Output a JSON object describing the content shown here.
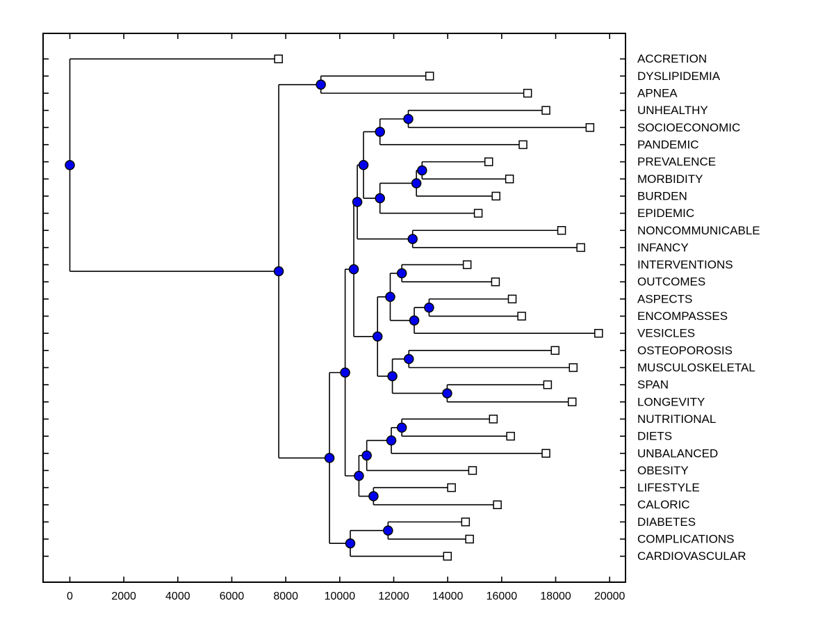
{
  "figure": {
    "background": "#ffffff"
  },
  "chart_data": {
    "type": "dendrogram",
    "orientation": "horizontal-left-to-right",
    "title": "",
    "xlabel": "",
    "ylabel": "",
    "grid": false,
    "xlim": [
      -1000,
      20600
    ],
    "axis_color": "#000000",
    "line_color": "#000000",
    "node_marker": {
      "shape": "filled-circle",
      "fill": "#0000EE",
      "stroke": "#000000",
      "radius": 6.5
    },
    "leaf_marker": {
      "shape": "open-square",
      "fill": "#ffffff",
      "stroke": "#000000",
      "size": 11
    },
    "x_ticks": [
      {
        "value": 0,
        "label": "0"
      },
      {
        "value": 2000,
        "label": "2000"
      },
      {
        "value": 4000,
        "label": "4000"
      },
      {
        "value": 6000,
        "label": "6000"
      },
      {
        "value": 8000,
        "label": "8000"
      },
      {
        "value": 10000,
        "label": "10000"
      },
      {
        "value": 12000,
        "label": "12000"
      },
      {
        "value": 14000,
        "label": "14000"
      },
      {
        "value": 16000,
        "label": "16000"
      },
      {
        "value": 18000,
        "label": "18000"
      },
      {
        "value": 20000,
        "label": "20000"
      }
    ],
    "leaves": [
      {
        "label": "ACCRETION",
        "value": 7730
      },
      {
        "label": "DYSLIPIDEMIA",
        "value": 13330
      },
      {
        "label": "APNEA",
        "value": 16960
      },
      {
        "label": "UNHEALTHY",
        "value": 17640
      },
      {
        "label": "SOCIOECONOMIC",
        "value": 19270
      },
      {
        "label": "PANDEMIC",
        "value": 16790
      },
      {
        "label": "PREVALENCE",
        "value": 15520
      },
      {
        "label": "MORBIDITY",
        "value": 16290
      },
      {
        "label": "BURDEN",
        "value": 15790
      },
      {
        "label": "EPIDEMIC",
        "value": 15130
      },
      {
        "label": "NONCOMMUNICABLE",
        "value": 18220
      },
      {
        "label": "INFANCY",
        "value": 18930
      },
      {
        "label": "INTERVENTIONS",
        "value": 14720
      },
      {
        "label": "OUTCOMES",
        "value": 15770
      },
      {
        "label": "ASPECTS",
        "value": 16390
      },
      {
        "label": "ENCOMPASSES",
        "value": 16740
      },
      {
        "label": "VESICLES",
        "value": 19590
      },
      {
        "label": "OSTEOPOROSIS",
        "value": 17980
      },
      {
        "label": "MUSCULOSKELETAL",
        "value": 18650
      },
      {
        "label": "SPAN",
        "value": 17700
      },
      {
        "label": "LONGEVITY",
        "value": 18610
      },
      {
        "label": "NUTRITIONAL",
        "value": 15690
      },
      {
        "label": "DIETS",
        "value": 16330
      },
      {
        "label": "UNBALANCED",
        "value": 17640
      },
      {
        "label": "OBESITY",
        "value": 14920
      },
      {
        "label": "LIFESTYLE",
        "value": 14140
      },
      {
        "label": "CALORIC",
        "value": 15840
      },
      {
        "label": "DIABETES",
        "value": 14660
      },
      {
        "label": "COMPLICATIONS",
        "value": 14810
      },
      {
        "label": "CARDIOVASCULAR",
        "value": 13990
      }
    ],
    "nodes": [
      {
        "id": "n3",
        "children": [
          "leaf:1",
          "leaf:2"
        ],
        "value": 9300
      },
      {
        "id": "n4",
        "children": [
          "leaf:3",
          "leaf:4"
        ],
        "value": 12540
      },
      {
        "id": "n5",
        "children": [
          "node:n4",
          "leaf:5"
        ],
        "value": 11490
      },
      {
        "id": "n6",
        "children": [
          "leaf:6",
          "leaf:7"
        ],
        "value": 13050
      },
      {
        "id": "n7",
        "children": [
          "node:n6",
          "leaf:8"
        ],
        "value": 12840
      },
      {
        "id": "n8",
        "children": [
          "node:n7",
          "leaf:9"
        ],
        "value": 11490
      },
      {
        "id": "n9",
        "children": [
          "node:n5",
          "node:n8"
        ],
        "value": 10880
      },
      {
        "id": "n10",
        "children": [
          "leaf:10",
          "leaf:11"
        ],
        "value": 12700
      },
      {
        "id": "n11",
        "children": [
          "node:n9",
          "node:n10"
        ],
        "value": 10650
      },
      {
        "id": "n12",
        "children": [
          "leaf:12",
          "leaf:13"
        ],
        "value": 12300
      },
      {
        "id": "n13",
        "children": [
          "leaf:14",
          "leaf:15"
        ],
        "value": 13310
      },
      {
        "id": "n14",
        "children": [
          "node:n13",
          "leaf:16"
        ],
        "value": 12760
      },
      {
        "id": "n15",
        "children": [
          "node:n12",
          "node:n14"
        ],
        "value": 11870
      },
      {
        "id": "n16",
        "children": [
          "leaf:17",
          "leaf:18"
        ],
        "value": 12560
      },
      {
        "id": "n18",
        "children": [
          "leaf:19",
          "leaf:20"
        ],
        "value": 13980
      },
      {
        "id": "n19",
        "children": [
          "node:n16",
          "node:n18"
        ],
        "value": 11950
      },
      {
        "id": "n20",
        "children": [
          "node:n15",
          "node:n19"
        ],
        "value": 11400
      },
      {
        "id": "n21",
        "children": [
          "node:n11",
          "node:n20"
        ],
        "value": 10520
      },
      {
        "id": "n22",
        "children": [
          "leaf:21",
          "leaf:22"
        ],
        "value": 12300
      },
      {
        "id": "n23",
        "children": [
          "node:n22",
          "leaf:23"
        ],
        "value": 11910
      },
      {
        "id": "n24",
        "children": [
          "node:n23",
          "leaf:24"
        ],
        "value": 11000
      },
      {
        "id": "n25",
        "children": [
          "leaf:25",
          "leaf:26"
        ],
        "value": 11250
      },
      {
        "id": "n26",
        "children": [
          "node:n24",
          "node:n25"
        ],
        "value": 10710
      },
      {
        "id": "n27",
        "children": [
          "node:n21",
          "node:n26"
        ],
        "value": 10200
      },
      {
        "id": "n28",
        "children": [
          "leaf:27",
          "leaf:28"
        ],
        "value": 11790
      },
      {
        "id": "n29",
        "children": [
          "node:n28",
          "leaf:29"
        ],
        "value": 10390
      },
      {
        "id": "n30",
        "children": [
          "node:n27",
          "node:n29"
        ],
        "value": 9620
      },
      {
        "id": "n2",
        "children": [
          "node:n3",
          "node:n30"
        ],
        "value": 7740
      },
      {
        "id": "n1",
        "children": [
          "leaf:0",
          "node:n2"
        ],
        "value": 0
      }
    ]
  }
}
